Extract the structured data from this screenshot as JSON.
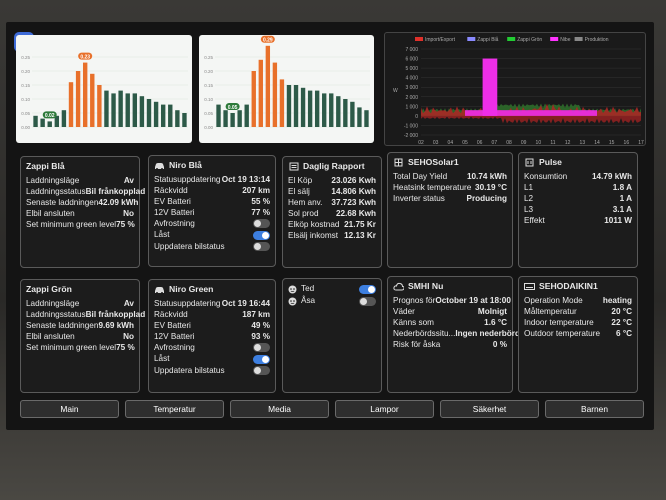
{
  "nav": [
    "Main",
    "Temperatur",
    "Media",
    "Lampor",
    "Säkerhet",
    "Barnen"
  ],
  "charts": {
    "left": {
      "peak_label": "0.23",
      "low_label": "0.02",
      "values": [
        0.04,
        0.03,
        0.02,
        0.04,
        0.06,
        0.16,
        0.2,
        0.23,
        0.19,
        0.15,
        0.13,
        0.12,
        0.13,
        0.12,
        0.12,
        0.11,
        0.1,
        0.09,
        0.08,
        0.08,
        0.06,
        0.05
      ],
      "highlight": [
        5,
        6,
        7,
        8,
        9
      ],
      "yticks": [
        "0.25",
        "0.20",
        "0.15",
        "0.10",
        "0.05",
        "0.00"
      ]
    },
    "mid": {
      "peak_label": "0.29",
      "low_label": "0.05",
      "values": [
        0.08,
        0.06,
        0.05,
        0.06,
        0.08,
        0.2,
        0.24,
        0.29,
        0.23,
        0.17,
        0.15,
        0.15,
        0.14,
        0.13,
        0.13,
        0.12,
        0.12,
        0.11,
        0.1,
        0.09,
        0.07,
        0.06
      ],
      "highlight": [
        5,
        6,
        7,
        8,
        9
      ],
      "yticks": [
        "0.25",
        "0.20",
        "0.15",
        "0.10",
        "0.05",
        "0.00"
      ]
    },
    "power": {
      "legend": [
        "Import/Export",
        "Zappi Blå",
        "Zappi Grön",
        "Nibe",
        "Produktion"
      ],
      "legend_colors": [
        "#e0302a",
        "#8a8aff",
        "#22cc33",
        "#ff33ff",
        "#888888"
      ],
      "yticks": [
        "7 000",
        "6 000",
        "5 000",
        "4 000",
        "3 000",
        "2 000",
        "1 000",
        "0",
        "-1 000",
        "-2 000"
      ],
      "yaxis_label": "W",
      "xticks": [
        "02",
        "03",
        "04",
        "05",
        "06",
        "07",
        "08",
        "09",
        "10",
        "11",
        "12",
        "13",
        "14",
        "15",
        "16",
        "17"
      ]
    }
  },
  "cards": {
    "zappi_bla": {
      "title": "Zappi Blå",
      "rows": [
        {
          "k": "Laddningsläge",
          "v": "Av"
        },
        {
          "k": "Laddningsstatus",
          "v": "Bil frånkopplad"
        },
        {
          "k": "Senaste laddningen",
          "v": "42.09 kWh"
        },
        {
          "k": "Elbil ansluten",
          "v": "No"
        },
        {
          "k": "Set minimum green level",
          "v": "75 %"
        }
      ]
    },
    "niro_bla": {
      "title": "Niro Blå",
      "rows": [
        {
          "k": "Statusuppdatering",
          "v": "Oct 19 13:14"
        },
        {
          "k": "Räckvidd",
          "v": "207 km"
        },
        {
          "k": "EV Batteri",
          "v": "55 %"
        },
        {
          "k": "12V Batteri",
          "v": "77 %"
        }
      ],
      "toggles": [
        {
          "k": "Avfrostning",
          "on": false
        },
        {
          "k": "Låst",
          "on": true
        },
        {
          "k": "Uppdatera bilstatus",
          "on": false
        }
      ]
    },
    "daglig": {
      "title": "Daglig Rapport",
      "rows": [
        {
          "k": "El Köp",
          "v": "23.026 Kwh"
        },
        {
          "k": "El sälj",
          "v": "14.806 Kwh"
        },
        {
          "k": "Hem anv.",
          "v": "37.723 Kwh"
        },
        {
          "k": "Sol prod",
          "v": "22.68 Kwh"
        },
        {
          "k": "Elköp kostnad",
          "v": "21.75 Kr"
        },
        {
          "k": "Elsälj inkomst",
          "v": "12.13 Kr"
        }
      ]
    },
    "sehosolar": {
      "title": "SEHOSolar1",
      "rows": [
        {
          "k": "Total Day Yield",
          "v": "10.74 kWh"
        },
        {
          "k": "Heatsink temperature",
          "v": "30.19 °C"
        },
        {
          "k": "Inverter status",
          "v": "Producing"
        }
      ]
    },
    "pulse": {
      "title": "Pulse",
      "rows": [
        {
          "k": "Konsumtion",
          "v": "14.79 kWh"
        },
        {
          "k": "L1",
          "v": "1.8 A"
        },
        {
          "k": "L2",
          "v": "1 A"
        },
        {
          "k": "L3",
          "v": "3.1 A"
        },
        {
          "k": "Effekt",
          "v": "1011 W"
        }
      ]
    },
    "zappi_gron": {
      "title": "Zappi Grön",
      "rows": [
        {
          "k": "Laddningsläge",
          "v": "Av"
        },
        {
          "k": "Laddningsstatus",
          "v": "Bil frånkopplad"
        },
        {
          "k": "Senaste laddningen",
          "v": "9.69 kWh"
        },
        {
          "k": "Elbil ansluten",
          "v": "No"
        },
        {
          "k": "Set minimum green level",
          "v": "75 %"
        }
      ]
    },
    "niro_green": {
      "title": "Niro Green",
      "rows": [
        {
          "k": "Statusuppdatering",
          "v": "Oct 19 16:44"
        },
        {
          "k": "Räckvidd",
          "v": "187 km"
        },
        {
          "k": "EV Batteri",
          "v": "49 %"
        },
        {
          "k": "12V Batteri",
          "v": "93 %"
        }
      ],
      "toggles": [
        {
          "k": "Avfrostning",
          "on": false
        },
        {
          "k": "Låst",
          "on": true
        },
        {
          "k": "Uppdatera bilstatus",
          "on": false
        }
      ]
    },
    "persons": {
      "items": [
        {
          "k": "Ted",
          "on": true
        },
        {
          "k": "Åsa",
          "on": false
        }
      ]
    },
    "smhi": {
      "title": "SMHI Nu",
      "rows": [
        {
          "k": "Prognos för",
          "v": "October 19 at 18:00"
        },
        {
          "k": "Väder",
          "v": "Molnigt"
        },
        {
          "k": "Känns som",
          "v": "1.6 °C"
        },
        {
          "k": "Nederbördssitu...",
          "v": "Ingen nederbörd"
        },
        {
          "k": "Risk för åska",
          "v": "0 %"
        }
      ]
    },
    "daikin": {
      "title": "SEHODAIKIN1",
      "rows": [
        {
          "k": "Operation Mode",
          "v": "heating"
        },
        {
          "k": "Måltemperatur",
          "v": "20 °C"
        },
        {
          "k": "Indoor temperature",
          "v": "22 °C"
        },
        {
          "k": "Outdoor temperature",
          "v": "6 °C"
        }
      ]
    }
  }
}
